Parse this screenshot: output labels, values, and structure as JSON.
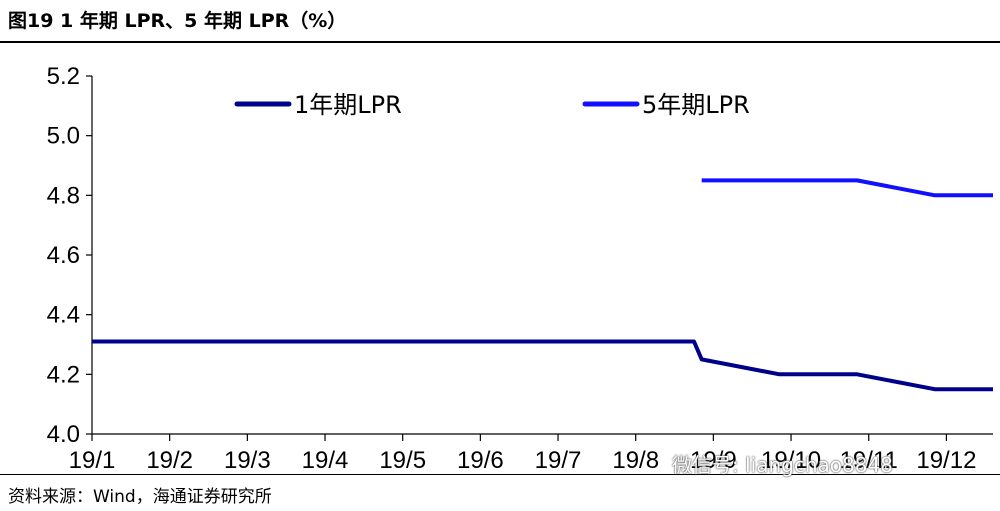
{
  "header": {
    "title": "图19 1 年期 LPR、5 年期 LPR（%）"
  },
  "chart_data": {
    "type": "line",
    "title": "图19 1 年期 LPR、5 年期 LPR（%）",
    "xlabel": "",
    "ylabel": "",
    "x_domain": [
      0,
      11.6
    ],
    "ylim": [
      4.0,
      5.2
    ],
    "yticks": [
      4.0,
      4.2,
      4.4,
      4.6,
      4.8,
      5.0,
      5.2
    ],
    "ytick_labels": [
      "4.0",
      "4.2",
      "4.4",
      "4.6",
      "4.8",
      "5.0",
      "5.2"
    ],
    "categories": [
      "19/1",
      "19/2",
      "19/3",
      "19/4",
      "19/5",
      "19/6",
      "19/7",
      "19/8",
      "19/9",
      "19/10",
      "19/11",
      "19/12"
    ],
    "series": [
      {
        "name": "1年期LPR",
        "color": "#00008B",
        "points": [
          [
            0,
            4.31
          ],
          [
            7.75,
            4.31
          ],
          [
            7.85,
            4.25
          ],
          [
            8.85,
            4.2
          ],
          [
            9.85,
            4.2
          ],
          [
            10.85,
            4.15
          ],
          [
            11.6,
            4.15
          ]
        ]
      },
      {
        "name": "5年期LPR",
        "color": "#1010FF",
        "points": [
          [
            7.85,
            4.85
          ],
          [
            8.85,
            4.85
          ],
          [
            9.85,
            4.85
          ],
          [
            10.85,
            4.8
          ],
          [
            11.6,
            4.8
          ]
        ]
      }
    ],
    "legend_position": "top"
  },
  "footer": {
    "source": "资料来源：Wind，海通证券研究所"
  },
  "watermark": {
    "text": "微信号: liangchao8848"
  }
}
